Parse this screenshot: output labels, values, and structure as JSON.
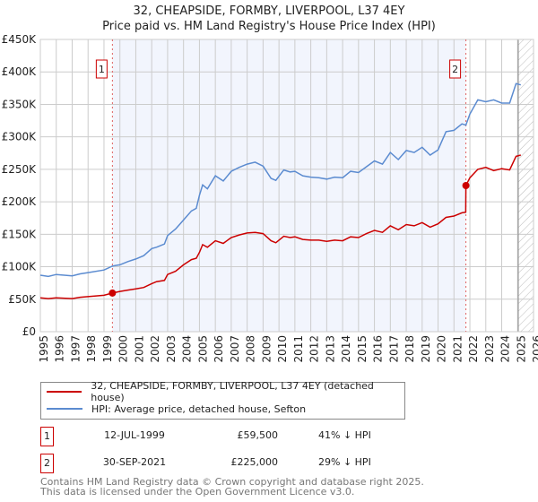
{
  "header": {
    "title_line1": "32, CHEAPSIDE, FORMBY, LIVERPOOL, L37 4EY",
    "title_line2": "Price paid vs. HM Land Registry's House Price Index (HPI)"
  },
  "chart_data": {
    "type": "line",
    "title": "32, CHEAPSIDE, FORMBY, LIVERPOOL, L37 4EY — Price paid vs. HM Land Registry's House Price Index (HPI)",
    "xlabel": "",
    "ylabel": "",
    "xlim": [
      1995,
      2026
    ],
    "ylim": [
      0,
      450000
    ],
    "xticks": [
      1995,
      1996,
      1997,
      1998,
      1999,
      2000,
      2001,
      2002,
      2003,
      2004,
      2005,
      2006,
      2007,
      2008,
      2009,
      2010,
      2011,
      2012,
      2013,
      2014,
      2015,
      2016,
      2017,
      2018,
      2019,
      2020,
      2021,
      2022,
      2023,
      2024,
      2025,
      2026
    ],
    "yticks": [
      0,
      50000,
      100000,
      150000,
      200000,
      250000,
      300000,
      350000,
      400000,
      450000
    ],
    "ytick_labels": [
      "£0",
      "£50K",
      "£100K",
      "£150K",
      "£200K",
      "£250K",
      "£300K",
      "£350K",
      "£400K",
      "£450K"
    ],
    "grid": true,
    "legend_position": "below",
    "series": [
      {
        "name": "32, CHEAPSIDE, FORMBY, LIVERPOOL, L37 4EY (detached house)",
        "color": "#cc0000",
        "x": [
          1995,
          1995.5,
          1996,
          1997,
          1997.5,
          1998,
          1999,
          1999.53,
          2000,
          2000.5,
          2001,
          2001.5,
          2002,
          2002.3,
          2002.8,
          2003,
          2003.5,
          2004,
          2004.5,
          2004.8,
          2005,
          2005.2,
          2005.5,
          2006,
          2006.5,
          2007,
          2007.5,
          2008,
          2008.5,
          2009,
          2009.5,
          2009.8,
          2010.3,
          2010.7,
          2011,
          2011.5,
          2012,
          2012.5,
          2013,
          2013.5,
          2014,
          2014.5,
          2015,
          2015.5,
          2016,
          2016.5,
          2017,
          2017.5,
          2018,
          2018.5,
          2019,
          2019.5,
          2020,
          2020.5,
          2021,
          2021.5,
          2021.74,
          2021.75,
          2022,
          2022.5,
          2023,
          2023.5,
          2024,
          2024.5,
          2024.9,
          2025.2
        ],
        "y": [
          52000,
          51000,
          52000,
          51000,
          53000,
          54000,
          56000,
          59500,
          62000,
          64000,
          66000,
          68000,
          74000,
          77000,
          79000,
          88000,
          93000,
          103000,
          111000,
          113000,
          122000,
          134000,
          130000,
          140000,
          136000,
          145000,
          149000,
          152000,
          153000,
          151000,
          140000,
          137000,
          147000,
          145000,
          146000,
          142000,
          141000,
          141000,
          139000,
          141000,
          140000,
          146000,
          145000,
          151000,
          156000,
          153000,
          163000,
          157000,
          165000,
          163000,
          168000,
          161000,
          166000,
          176000,
          178000,
          183000,
          184000,
          225000,
          237000,
          250000,
          253000,
          248000,
          251000,
          249000,
          270000,
          272000
        ]
      },
      {
        "name": "HPI: Average price, detached house, Sefton",
        "color": "#5b8bd0",
        "x": [
          1995,
          1995.5,
          1996,
          1997,
          1997.5,
          1998,
          1999,
          1999.53,
          2000,
          2000.5,
          2001,
          2001.5,
          2002,
          2002.3,
          2002.8,
          2003,
          2003.5,
          2004,
          2004.5,
          2004.8,
          2005,
          2005.2,
          2005.5,
          2006,
          2006.5,
          2007,
          2007.5,
          2008,
          2008.5,
          2009,
          2009.5,
          2009.8,
          2010.3,
          2010.7,
          2011,
          2011.5,
          2012,
          2012.5,
          2013,
          2013.5,
          2014,
          2014.5,
          2015,
          2015.5,
          2016,
          2016.5,
          2017,
          2017.5,
          2018,
          2018.5,
          2019,
          2019.5,
          2020,
          2020.5,
          2021,
          2021.5,
          2021.75,
          2022,
          2022.5,
          2023,
          2023.5,
          2024,
          2024.5,
          2024.9,
          2025.2
        ],
        "y": [
          87000,
          85000,
          88000,
          86000,
          89000,
          91000,
          95000,
          101000,
          103000,
          108000,
          112000,
          117000,
          128000,
          130000,
          135000,
          148000,
          158000,
          172000,
          186000,
          190000,
          210000,
          226000,
          220000,
          240000,
          232000,
          247000,
          253000,
          258000,
          261000,
          255000,
          236000,
          233000,
          249000,
          246000,
          247000,
          240000,
          238000,
          237000,
          235000,
          238000,
          237000,
          247000,
          245000,
          254000,
          263000,
          258000,
          276000,
          265000,
          279000,
          276000,
          284000,
          272000,
          280000,
          308000,
          310000,
          320000,
          318000,
          335000,
          357000,
          354000,
          357000,
          352000,
          352000,
          382000,
          380000
        ]
      }
    ],
    "sales": [
      {
        "label": "1",
        "year": 1999.53,
        "price": 59500
      },
      {
        "label": "2",
        "year": 2021.75,
        "price": 225000
      }
    ],
    "shaded_range": [
      1999.53,
      2021.75
    ],
    "forecast_hatch_from": 2025.04
  },
  "legend": {
    "items": [
      {
        "label": "32, CHEAPSIDE, FORMBY, LIVERPOOL, L37 4EY (detached house)",
        "color": "#cc0000"
      },
      {
        "label": "HPI: Average price, detached house, Sefton",
        "color": "#5b8bd0"
      }
    ]
  },
  "table": {
    "rows": [
      {
        "num": "1",
        "date": "12-JUL-1999",
        "price": "£59,500",
        "diff": "41% ↓ HPI"
      },
      {
        "num": "2",
        "date": "30-SEP-2021",
        "price": "£225,000",
        "diff": "29% ↓ HPI"
      }
    ]
  },
  "footer": {
    "line1": "Contains HM Land Registry data © Crown copyright and database right 2025.",
    "line2": "This data is licensed under the Open Government Licence v3.0."
  }
}
